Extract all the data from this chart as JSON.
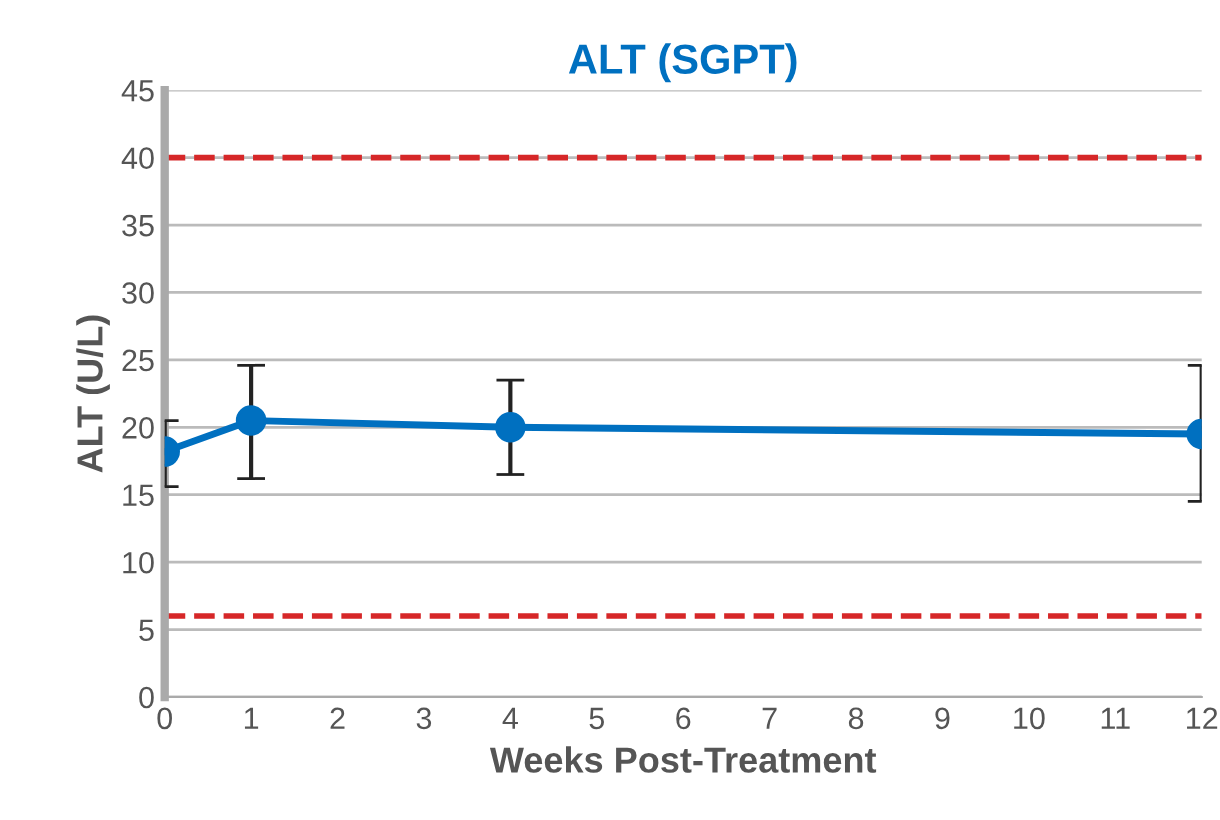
{
  "chart_data": {
    "type": "line",
    "title": "ALT (SGPT)",
    "xlabel": "Weeks Post-Treatment",
    "ylabel": "ALT (U/L)",
    "x": [
      0,
      1,
      4,
      12
    ],
    "series": [
      {
        "color": "#0070c0",
        "values": [
          18.2,
          20.5,
          20.0,
          19.5
        ],
        "errors": [
          [
            15.6,
            20.5
          ],
          [
            16.2,
            24.6
          ],
          [
            16.5,
            23.5
          ],
          [
            14.5,
            24.6
          ]
        ]
      }
    ],
    "xlim": [
      0,
      12
    ],
    "xticks": [
      0,
      1,
      2,
      3,
      4,
      5,
      6,
      7,
      8,
      9,
      10,
      11,
      12
    ],
    "ylim": [
      0,
      45
    ],
    "yticks": [
      0,
      5,
      10,
      15,
      20,
      25,
      30,
      35,
      40,
      45
    ],
    "ref_lines": [
      {
        "axis": "y",
        "value": 40,
        "color": "#d62728",
        "line_style": "dashed"
      },
      {
        "axis": "y",
        "value": 6,
        "color": "#d62728",
        "line_style": "dashed"
      }
    ],
    "grid": "y",
    "marker": "circle",
    "line_style": "solid",
    "legend": false
  }
}
